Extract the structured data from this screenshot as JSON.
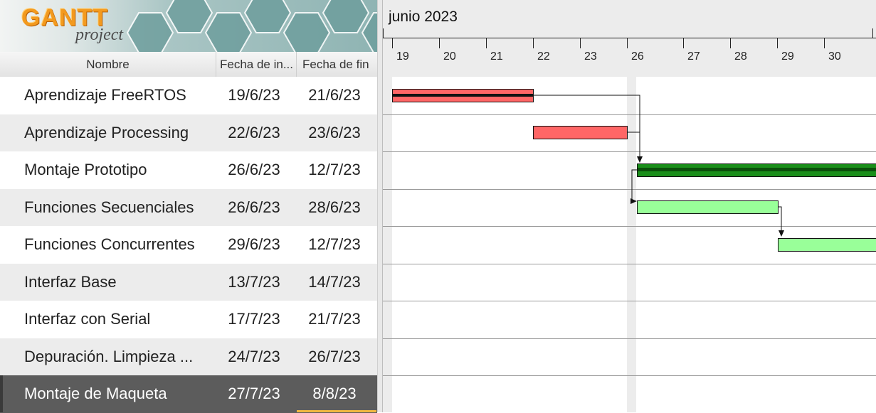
{
  "app": {
    "logo_word": "GANTT",
    "logo_sub": "project"
  },
  "table": {
    "columns": [
      "Nombre",
      "Fecha de in...",
      "Fecha de fin"
    ],
    "rows": [
      {
        "name": "Aprendizaje FreeRTOS",
        "start": "19/6/23",
        "end": "21/6/23"
      },
      {
        "name": "Aprendizaje Processing",
        "start": "22/6/23",
        "end": "23/6/23"
      },
      {
        "name": "Montaje Prototipo",
        "start": "26/6/23",
        "end": "12/7/23"
      },
      {
        "name": "Funciones Secuenciales",
        "start": "26/6/23",
        "end": "28/6/23"
      },
      {
        "name": "Funciones Concurrentes",
        "start": "29/6/23",
        "end": "12/7/23"
      },
      {
        "name": "Interfaz Base",
        "start": "13/7/23",
        "end": "14/7/23"
      },
      {
        "name": "Interfaz con Serial",
        "start": "17/7/23",
        "end": "21/7/23"
      },
      {
        "name": "Depuración. Limpieza ...",
        "start": "24/7/23",
        "end": "26/7/23"
      },
      {
        "name": "Montaje de Maqueta",
        "start": "27/7/23",
        "end": "8/8/23"
      }
    ],
    "selected_row": 8
  },
  "timeline": {
    "month": "junio 2023",
    "days": [
      "19",
      "20",
      "21",
      "22",
      "23",
      "26",
      "27",
      "28",
      "29",
      "30"
    ]
  },
  "colors": {
    "bar_red": "#ff6666",
    "bar_green_summary": "#1a8f1a",
    "bar_green": "#99ff99",
    "selection": "#5c5c5c",
    "selection_accent": "#f0b840"
  }
}
